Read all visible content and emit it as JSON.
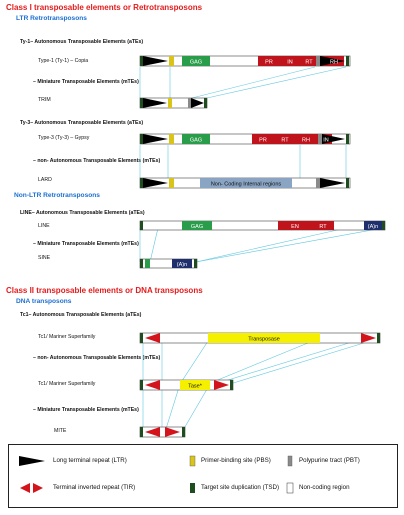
{
  "class1": {
    "title": "Class I transposable elements or Retrotransposons",
    "ltr_title": "LTR Retrotransposons",
    "nonltr_title": "Non-LTR Retrotransposons"
  },
  "ty1": {
    "group": "Ty-1– Autonomous Transposable Elements (aTEs)",
    "label": "Type-1 (Ty-1) – Copia",
    "domains": [
      "GAG",
      "PR",
      "IN",
      "RT",
      "RH"
    ]
  },
  "trim": {
    "group": "– Miniature Transposable Elements (mTEs)",
    "label": "TRIM"
  },
  "ty3": {
    "group": "Ty-3– Autonomous Transposable Elements (aTEs)",
    "label": "Type-3 (Ty-3) – Gypsy",
    "domains": [
      "GAG",
      "PR",
      "RT",
      "RH",
      "IN"
    ]
  },
  "lard": {
    "group": "– non- Autonomous Transposable Elements (mTEs)",
    "label": "LARD",
    "internal": "Non- Coding Internal regions"
  },
  "line": {
    "group": "LINE– Autonomous Transposable Elements (aTEs)",
    "label": "LINE",
    "domains": [
      "GAG",
      "EN",
      "RT"
    ],
    "tail": "(A)n"
  },
  "sine": {
    "group": "– Miniature Transposable Elements (mTEs)",
    "label": "SINE",
    "tail": "(A)n"
  },
  "class2": {
    "title": "Class II transposable elements or DNA transposons",
    "dna_title": "DNA transposons"
  },
  "tc1": {
    "group": "Tc1– Autonomous Transposable Elements (aTEs)",
    "label": "Tc1/ Mariner Superfamily",
    "domain": "Transposase"
  },
  "tc1na": {
    "group": "– non- Autonomous Transposable Elements (mTEs)",
    "label": "Tc1/ Mariner Superfamily",
    "domain": "Tase*"
  },
  "mite": {
    "group": "– Miniature Transposable Elements (mTEs)",
    "label": "MITE"
  },
  "legend": {
    "ltr": "Long terminal repeat (LTR)",
    "pbs": "Primer-binding site (PBS)",
    "pbt": "Polypurine tract (PBT)",
    "tir": "Terminal inverted repeat (TIR)",
    "tsd": "Target site duplication (TSD)",
    "noncoding": "Non-coding region"
  },
  "colors": {
    "class_title": "#e31b1b",
    "sub_title": "#1b6fd2",
    "gag": "#2a9d4a",
    "pol": "#c0141c",
    "pbs": "#d8c41a",
    "pbt": "#8a8a8a",
    "tsd": "#1f4d1f",
    "lard_internal": "#8aa4c4",
    "line_tail": "#1f2f6e",
    "transposase": "#f4f000",
    "tir": "#d4141c",
    "ltr": "#000000",
    "connector": "#5fc8e0"
  }
}
